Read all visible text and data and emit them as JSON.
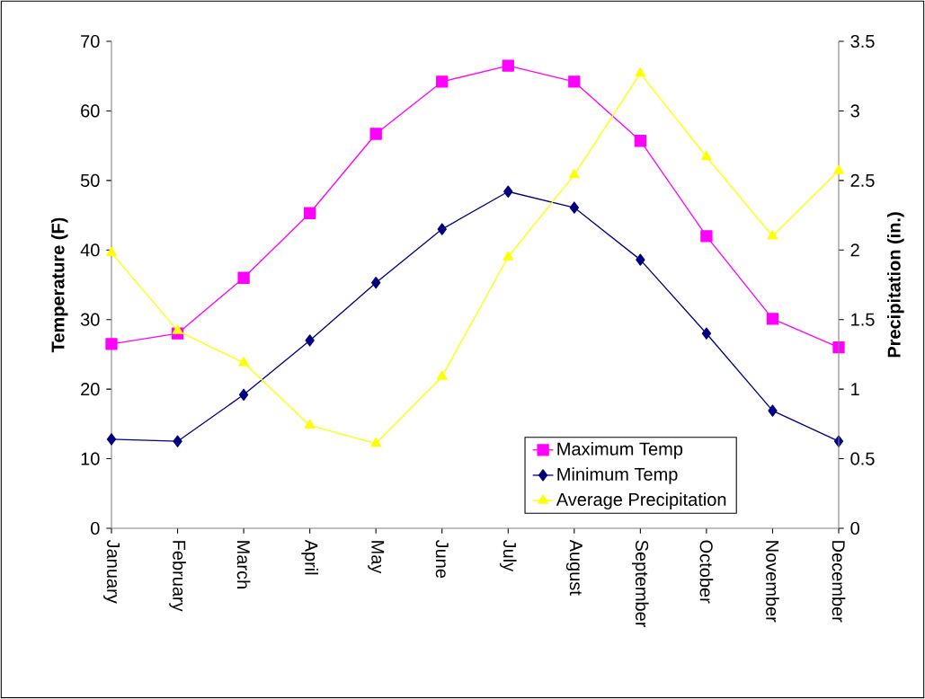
{
  "chart_data": {
    "type": "line",
    "categories": [
      "January",
      "February",
      "March",
      "April",
      "May",
      "June",
      "July",
      "August",
      "September",
      "October",
      "November",
      "December"
    ],
    "series": [
      {
        "name": "Maximum Temp",
        "color": "#ff00ff",
        "marker": "square",
        "values": [
          26.5,
          28.0,
          36.0,
          45.3,
          56.7,
          64.2,
          66.5,
          64.2,
          55.7,
          42.0,
          30.1,
          26.0
        ]
      },
      {
        "name": "Minimum Temp",
        "color": "#000080",
        "marker": "diamond",
        "values": [
          12.8,
          12.5,
          19.2,
          27.0,
          35.3,
          43.0,
          48.4,
          46.1,
          38.6,
          28.0,
          16.9,
          12.5
        ]
      },
      {
        "name": "Average Precipitation",
        "color": "#ffff00",
        "marker": "triangle",
        "axis": "y2",
        "values": [
          1.98,
          1.42,
          1.19,
          0.74,
          0.61,
          1.09,
          1.95,
          2.54,
          3.27,
          2.67,
          2.1,
          2.57
        ]
      }
    ],
    "ylabel": "Temperature (F)",
    "y2label": "Precipitation (in.)",
    "ylim": [
      0,
      70
    ],
    "yticks": [
      0,
      10,
      20,
      30,
      40,
      50,
      60,
      70
    ],
    "y2lim": [
      0,
      3.5
    ],
    "y2ticks": [
      0,
      {
        "value": 0.5,
        "label": "0.5"
      },
      1,
      {
        "value": 1.5,
        "label": "1.5"
      },
      2,
      {
        "value": 2.5,
        "label": "2.5"
      },
      3,
      {
        "value": 3.5,
        "label": "3.5"
      }
    ],
    "legend": "bottom right"
  }
}
